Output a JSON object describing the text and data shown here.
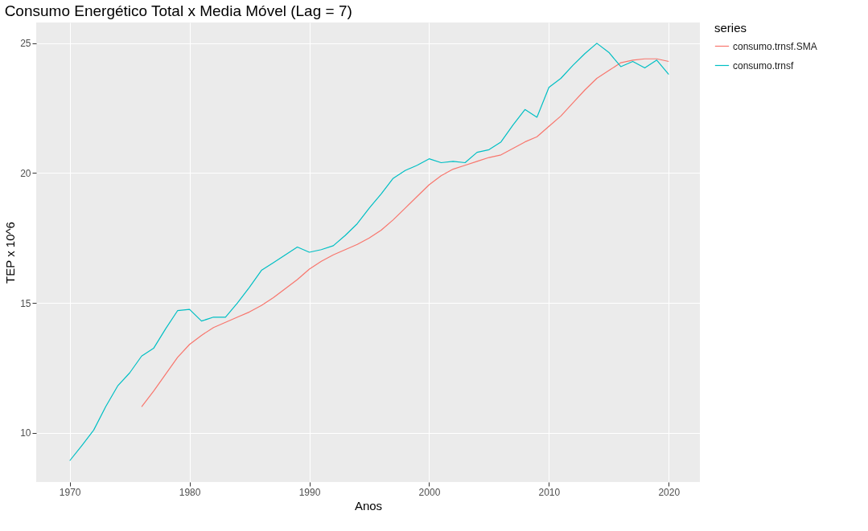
{
  "chart_data": {
    "type": "line",
    "title": "Consumo Energético Total x Media Móvel (Lag = 7)",
    "xlabel": "Anos",
    "ylabel": "TEP x 10^6",
    "legend_title": "series",
    "x": [
      1970,
      1971,
      1972,
      1973,
      1974,
      1975,
      1976,
      1977,
      1978,
      1979,
      1980,
      1981,
      1982,
      1983,
      1984,
      1985,
      1986,
      1987,
      1988,
      1989,
      1990,
      1991,
      1992,
      1993,
      1994,
      1995,
      1996,
      1997,
      1998,
      1999,
      2000,
      2001,
      2002,
      2003,
      2004,
      2005,
      2006,
      2007,
      2008,
      2009,
      2010,
      2011,
      2012,
      2013,
      2014,
      2015,
      2016,
      2017,
      2018,
      2019,
      2020
    ],
    "series": [
      {
        "name": "consumo.trnsf.SMA",
        "color": "#f8766d",
        "values": [
          null,
          null,
          null,
          null,
          null,
          null,
          11.0,
          11.6,
          12.25,
          12.9,
          13.4,
          13.75,
          14.05,
          14.25,
          14.45,
          14.65,
          14.9,
          15.2,
          15.55,
          15.9,
          16.3,
          16.6,
          16.85,
          17.05,
          17.25,
          17.5,
          17.8,
          18.2,
          18.65,
          19.1,
          19.55,
          19.9,
          20.15,
          20.3,
          20.45,
          20.6,
          20.7,
          20.95,
          21.2,
          21.4,
          21.8,
          22.2,
          22.7,
          23.2,
          23.65,
          23.95,
          24.25,
          24.35,
          24.4,
          24.4,
          24.3
        ]
      },
      {
        "name": "consumo.trnsf",
        "color": "#00bfc4",
        "values": [
          8.92,
          9.5,
          10.1,
          11.0,
          11.8,
          12.3,
          12.95,
          13.25,
          14.0,
          14.7,
          14.75,
          14.3,
          14.45,
          14.45,
          15.0,
          15.6,
          16.25,
          16.55,
          16.85,
          17.15,
          16.95,
          17.05,
          17.2,
          17.6,
          18.05,
          18.65,
          19.2,
          19.8,
          20.1,
          20.3,
          20.55,
          20.4,
          20.45,
          20.4,
          20.8,
          20.9,
          21.2,
          21.85,
          22.45,
          22.15,
          23.3,
          23.65,
          24.15,
          24.6,
          25.0,
          24.65,
          24.1,
          24.3,
          24.05,
          24.35,
          23.8
        ]
      }
    ],
    "xlim": [
      1967.2,
      2022.6
    ],
    "ylim": [
      8.1,
      25.8
    ],
    "xticks": [
      1970,
      1980,
      1990,
      2000,
      2010,
      2020
    ],
    "yticks": [
      10,
      15,
      20,
      25
    ],
    "grid": true,
    "legend": "right",
    "marker": "none",
    "line_style": "solid"
  }
}
